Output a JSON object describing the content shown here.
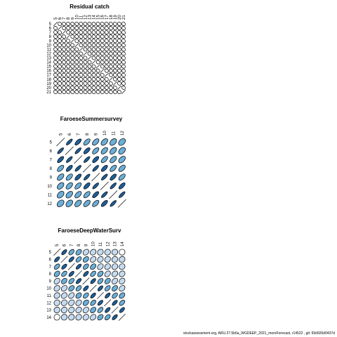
{
  "footer": "stockassessment.org,  ARU.27.5b6a_WGDEEP_2021_moreForecast,  r14522 ,  git: 69d926d0437d",
  "colors": {
    "outline": "#000000",
    "fill_high": "#1f5f99",
    "fill_mid": "#6baed6",
    "fill_low": "#c6dbef",
    "fill_none": "#ffffff"
  },
  "chart_data": [
    {
      "type": "heatmap",
      "subtype": "correlation-ellipse-matrix",
      "title": "Residual catch",
      "labels": [
        "5",
        "6",
        "7",
        "8",
        "9",
        "10",
        "11",
        "12",
        "13",
        "14",
        "15",
        "16",
        "17",
        "18",
        "19",
        "20",
        "21"
      ],
      "n": 17,
      "rho_model": {
        "kind": "weak",
        "decay": 0.0
      },
      "diagonal": "line"
    },
    {
      "type": "heatmap",
      "subtype": "correlation-ellipse-matrix",
      "title": "FaroeseSummersurvey",
      "labels": [
        "5",
        "6",
        "7",
        "8",
        "9",
        "10",
        "11",
        "12"
      ],
      "n": 8,
      "rho_model": {
        "kind": "ar",
        "decay": 0.9
      },
      "diagonal": "line"
    },
    {
      "type": "heatmap",
      "subtype": "correlation-ellipse-matrix",
      "title": "FaroeseDeepWaterSurv",
      "labels": [
        "5",
        "6",
        "7",
        "8",
        "9",
        "10",
        "11",
        "12",
        "13",
        "14"
      ],
      "n": 10,
      "rho_model": {
        "kind": "ar",
        "decay": 0.8
      },
      "diagonal": "line"
    }
  ]
}
